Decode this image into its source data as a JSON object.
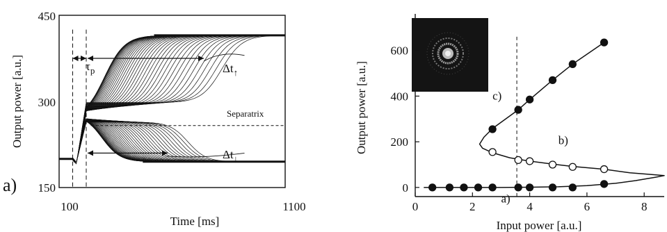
{
  "chart_data": [
    {
      "type": "line",
      "panel_label": "a)",
      "xlabel": "Time  [ms]",
      "ylabel": "Output  power  [a.u.]",
      "xlim": [
        100,
        1100
      ],
      "ylim": [
        150,
        450
      ],
      "x_ticks": [
        "100",
        "1100"
      ],
      "y_ticks": [
        "450",
        "300",
        "150"
      ],
      "initial_level": 200,
      "upper_level": 415,
      "lower_level": 195,
      "separatrix_level": 258,
      "switch_time": 220,
      "pulse_start": 160,
      "annotations": {
        "tau": "τ",
        "tau_sub": "p",
        "delta_up": "Δt",
        "delta_up_sub": "↑",
        "delta_down": "Δt",
        "delta_down_sub": "↓",
        "separatrix": "Separatrix"
      }
    },
    {
      "type": "scatter",
      "xlabel": "Input power [a.u.]",
      "ylabel": "Output power [a.u.]",
      "xlim": [
        0,
        8.7
      ],
      "ylim": [
        -40,
        760
      ],
      "x_ticks": [
        0,
        2,
        4,
        6,
        8
      ],
      "y_ticks": [
        0,
        200,
        400,
        600
      ],
      "series": [
        {
          "marker": "filled",
          "points": [
            [
              0.6,
              0
            ],
            [
              1.2,
              0
            ],
            [
              1.7,
              0
            ],
            [
              2.2,
              0
            ],
            [
              2.7,
              0
            ],
            [
              3.6,
              0
            ],
            [
              4.0,
              0
            ],
            [
              4.8,
              0
            ],
            [
              5.5,
              0
            ],
            [
              6.6,
              15
            ]
          ]
        },
        {
          "marker": "open",
          "points": [
            [
              2.7,
              155
            ],
            [
              3.6,
              120
            ],
            [
              4.0,
              115
            ],
            [
              4.8,
              100
            ],
            [
              5.5,
              90
            ],
            [
              6.6,
              80
            ]
          ]
        },
        {
          "marker": "filled",
          "points": [
            [
              2.7,
              255
            ],
            [
              3.6,
              340
            ],
            [
              4.0,
              385
            ],
            [
              4.8,
              470
            ],
            [
              5.5,
              540
            ],
            [
              6.6,
              635
            ]
          ]
        }
      ],
      "vline_x": 3.55,
      "labels": {
        "a": "a)",
        "b": "b)",
        "c": "c)"
      }
    }
  ]
}
